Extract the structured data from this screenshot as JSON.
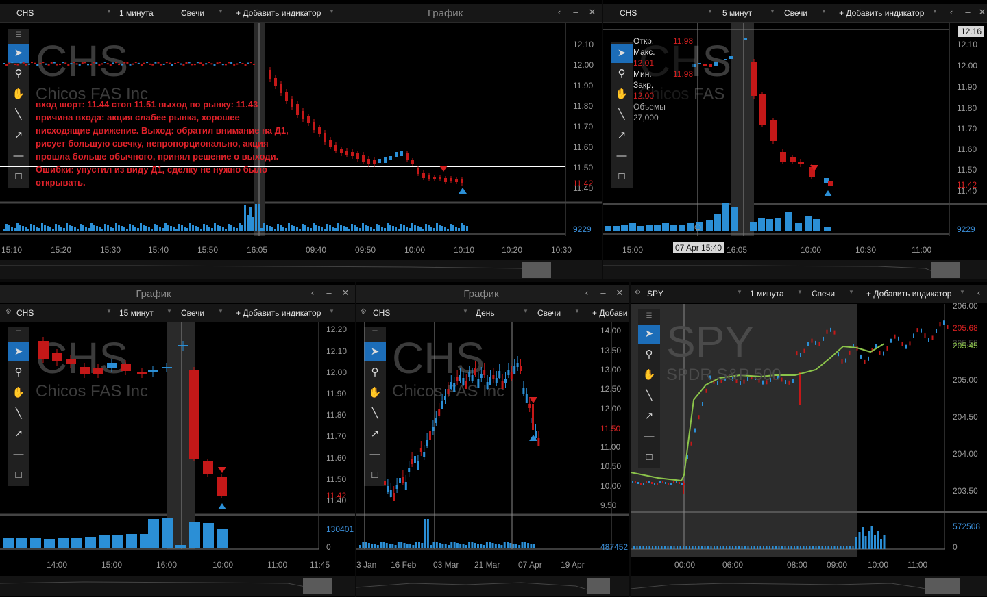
{
  "windows": {
    "chart_label": "График",
    "back_icon": "chevron-left-icon",
    "minimize_icon": "minimize-icon",
    "close_icon": "close-icon"
  },
  "panel1": {
    "symbol": "CHS",
    "interval": "1 минута",
    "chart_type": "Свечи",
    "add_indicator": "+ Добавить индикатор",
    "title": "График",
    "watermark_ticker": "CHS",
    "watermark_name": "Chicos FAS Inc",
    "note": "вход шорт: 11.44 стоп 11.51 выход по рынку: 11.43 причина входа: акция слабее рынка, хорошее нисходящие движение. Выход: обратил внимание на Д1, рисует большую свечку, непропорционально, акция прошла больше обычного, принял решение о выходи. Ошибки: упустил из виду Д1, сделку не нужно было открывать.",
    "y_ticks": [
      "12.10",
      "12.00",
      "11.90",
      "11.80",
      "11.70",
      "11.60",
      "11.50",
      "11.40"
    ],
    "last_price": "11.42",
    "level_line": "11.50",
    "volume_label": "9229",
    "x_ticks": [
      "15:10",
      "15:20",
      "15:30",
      "15:40",
      "15:50",
      "16:05",
      "09:40",
      "09:50",
      "10:00",
      "10:10",
      "10:20",
      "10:30"
    ]
  },
  "panel2": {
    "symbol": "CHS",
    "interval": "5 минут",
    "chart_type": "Свечи",
    "add_indicator": "+ Добавить индикатор",
    "watermark_ticker": "CHS",
    "watermark_name": "Chicos FAS Inc",
    "ohlc": [
      {
        "k": "Откр.",
        "v": "11.98"
      },
      {
        "k": "Макс.",
        "v": "12.01"
      },
      {
        "k": "Мин.",
        "v": "11.98"
      },
      {
        "k": "Закр.",
        "v": "12.00"
      }
    ],
    "volume_key": "Объемы",
    "volume_value": "27,000",
    "price_cursor": "12.16",
    "y_ticks": [
      "12.10",
      "12.00",
      "11.90",
      "11.80",
      "11.70",
      "11.60",
      "11.50",
      "11.40"
    ],
    "last_price": "11.42",
    "volume_label": "9229",
    "cursor_time": "07 Apr 15:40",
    "x_ticks": [
      "15:00",
      "16:05",
      "10:00",
      "10:30",
      "11:00"
    ]
  },
  "panel3": {
    "title": "График",
    "symbol": "CHS",
    "interval": "15 минут",
    "chart_type": "Свечи",
    "add_indicator": "+ Добавить индикатор",
    "watermark_ticker": "CHS",
    "watermark_name": "Chicos FAS Inc",
    "y_ticks": [
      "12.20",
      "12.10",
      "12.00",
      "11.90",
      "11.80",
      "11.70",
      "11.60",
      "11.50",
      "11.40"
    ],
    "last_price": "11.42",
    "volume_label": "130401",
    "volume_zero": "0",
    "x_ticks": [
      "14:00",
      "15:00",
      "16:00",
      "10:00",
      "11:00",
      "11:45"
    ]
  },
  "panel4": {
    "title": "График",
    "symbol": "CHS",
    "interval": "День",
    "chart_type": "Свечи",
    "add_indicator": "+ Добави",
    "watermark_ticker": "CHS",
    "watermark_name": "Chicos FAS Inc",
    "y_ticks": [
      "14.00",
      "13.50",
      "13.00",
      "12.50",
      "12.00",
      "11.00",
      "10.50",
      "10.00",
      "9.50"
    ],
    "last_price": "11.50",
    "volume_label": "487452",
    "x_ticks": [
      "3 Jan",
      "16 Feb",
      "03 Mar",
      "21 Mar",
      "07 Apr",
      "19 Apr"
    ]
  },
  "panel5": {
    "symbol": "SPY",
    "interval": "1 минута",
    "chart_type": "Свечи",
    "add_indicator": "+ Добавить индикатор",
    "watermark_ticker": "SPY",
    "watermark_name": "SPDR S&P 500",
    "y_ticks": [
      "206.00",
      "205.00",
      "204.50",
      "204.00",
      "203.50"
    ],
    "last_price": "205.68",
    "ma_price": "205.45",
    "ma_price_hidden": "205.58",
    "volume_label": "572508",
    "volume_zero": "0",
    "x_ticks": [
      "00:00",
      "06:00",
      "08:00",
      "09:00",
      "10:00",
      "11:00"
    ]
  },
  "colors": {
    "up": "#2b8fd6",
    "down": "#c41818",
    "accent": "#1c6db8",
    "ma": "#8bc34a"
  }
}
